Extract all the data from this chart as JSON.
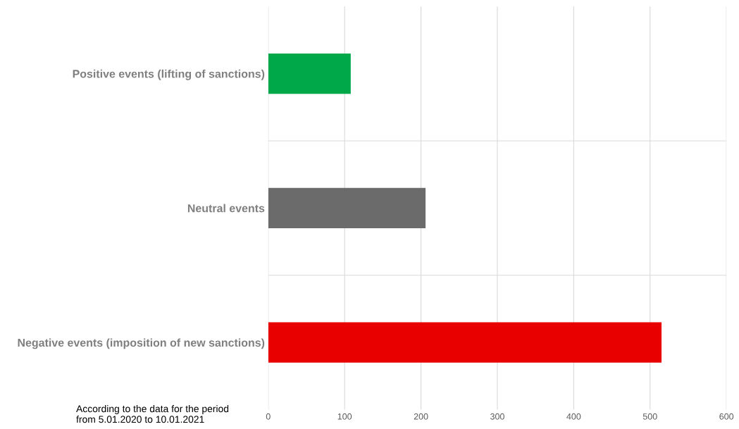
{
  "chart_data": {
    "type": "bar",
    "orientation": "horizontal",
    "categories": [
      "Positive events (lifting of sanctions)",
      "Neutral events",
      "Negative events (imposition of new sanctions)"
    ],
    "values": [
      108,
      206,
      515
    ],
    "colors": [
      "#00a84a",
      "#6b6b6b",
      "#e80000"
    ],
    "xlim": [
      0,
      600
    ],
    "xticks": [
      0,
      100,
      200,
      300,
      400,
      500,
      600
    ],
    "grid": true,
    "annotations": [
      "According to the data for the period\nfrom 5.01.2020 to 10.01.2021"
    ]
  }
}
